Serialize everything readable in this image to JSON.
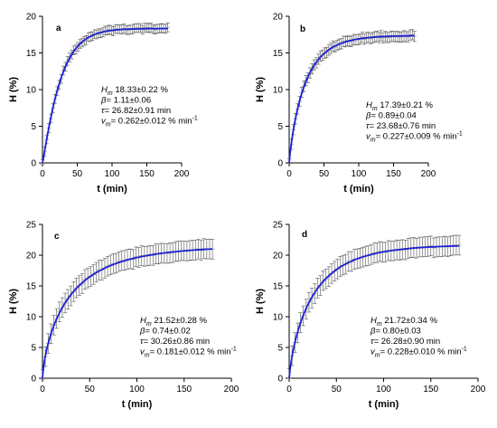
{
  "colors": {
    "fit": "#1f1fd6",
    "data": "#9a9a9a",
    "error": "#555555",
    "axis": "#000000"
  },
  "chart_data": [
    {
      "type": "scatter",
      "panel": "a",
      "xlabel": "t (min)",
      "ylabel": "H (%)",
      "xlim": [
        0,
        200
      ],
      "ylim": [
        0,
        20
      ],
      "xticks": [
        0,
        50,
        100,
        150,
        200
      ],
      "yticks": [
        0,
        5,
        10,
        15,
        20
      ],
      "params": {
        "Hm": 18.33,
        "beta": 1.11,
        "tau": 26.82
      },
      "t_max": 180,
      "error": 0.6,
      "annotations": [
        {
          "sym": "H",
          "sub": "m",
          "text": " 18.33±0.22 %",
          "sup": ""
        },
        {
          "sym": "β",
          "sub": "",
          "text": "= 1.11±0.06",
          "sup": ""
        },
        {
          "sym": "τ",
          "sub": "",
          "text": "= 26.82±0.91 min",
          "sup": ""
        },
        {
          "sym": "v",
          "sub": "m",
          "text": "= 0.262±0.012 % min",
          "sup": "-1"
        }
      ]
    },
    {
      "type": "scatter",
      "panel": "b",
      "xlabel": "t (min)",
      "ylabel": "H (%)",
      "xlim": [
        0,
        200
      ],
      "ylim": [
        0,
        20
      ],
      "xticks": [
        0,
        50,
        100,
        150,
        200
      ],
      "yticks": [
        0,
        5,
        10,
        15,
        20
      ],
      "params": {
        "Hm": 17.39,
        "beta": 0.89,
        "tau": 23.68
      },
      "t_max": 180,
      "error": 0.7,
      "annotations": [
        {
          "sym": "H",
          "sub": "m",
          "text": " 17.39±0.21 %",
          "sup": ""
        },
        {
          "sym": "β",
          "sub": "",
          "text": "= 0.89±0.04",
          "sup": ""
        },
        {
          "sym": "τ",
          "sub": "",
          "text": "= 23.68±0.76 min",
          "sup": ""
        },
        {
          "sym": "v",
          "sub": "m",
          "text": "= 0.227±0.009 % min",
          "sup": "-1"
        }
      ]
    },
    {
      "type": "scatter",
      "panel": "c",
      "xlabel": "t (min)",
      "ylabel": "H (%)",
      "xlim": [
        0,
        200
      ],
      "ylim": [
        0,
        25
      ],
      "xticks": [
        0,
        50,
        100,
        150,
        200
      ],
      "yticks": [
        0,
        5,
        10,
        15,
        20,
        25
      ],
      "params": {
        "Hm": 21.52,
        "beta": 0.74,
        "tau": 30.26
      },
      "t_max": 180,
      "error": 1.6,
      "annotations": [
        {
          "sym": "H",
          "sub": "m",
          "text": " 21.52±0.28 %",
          "sup": ""
        },
        {
          "sym": "β",
          "sub": "",
          "text": "= 0.74±0.02",
          "sup": ""
        },
        {
          "sym": "τ",
          "sub": "",
          "text": "= 30.26±0.86 min",
          "sup": ""
        },
        {
          "sym": "v",
          "sub": "m",
          "text": "= 0.181±0.012 % min",
          "sup": "-1"
        }
      ]
    },
    {
      "type": "scatter",
      "panel": "d",
      "xlabel": "t (min)",
      "ylabel": "H (%)",
      "xlim": [
        0,
        200
      ],
      "ylim": [
        0,
        25
      ],
      "xticks": [
        0,
        50,
        100,
        150,
        200
      ],
      "yticks": [
        0,
        5,
        10,
        15,
        20,
        25
      ],
      "params": {
        "Hm": 21.72,
        "beta": 0.8,
        "tau": 26.28
      },
      "t_max": 180,
      "error": 1.6,
      "annotations": [
        {
          "sym": "H",
          "sub": "m",
          "text": " 21.72±0.34 %",
          "sup": ""
        },
        {
          "sym": "β",
          "sub": "",
          "text": "= 0.80±0.03",
          "sup": ""
        },
        {
          "sym": "τ",
          "sub": "",
          "text": "= 26.28±0.90 min",
          "sup": ""
        },
        {
          "sym": "v",
          "sub": "m",
          "text": "= 0.228±0.010 % min",
          "sup": "-1"
        }
      ]
    }
  ]
}
